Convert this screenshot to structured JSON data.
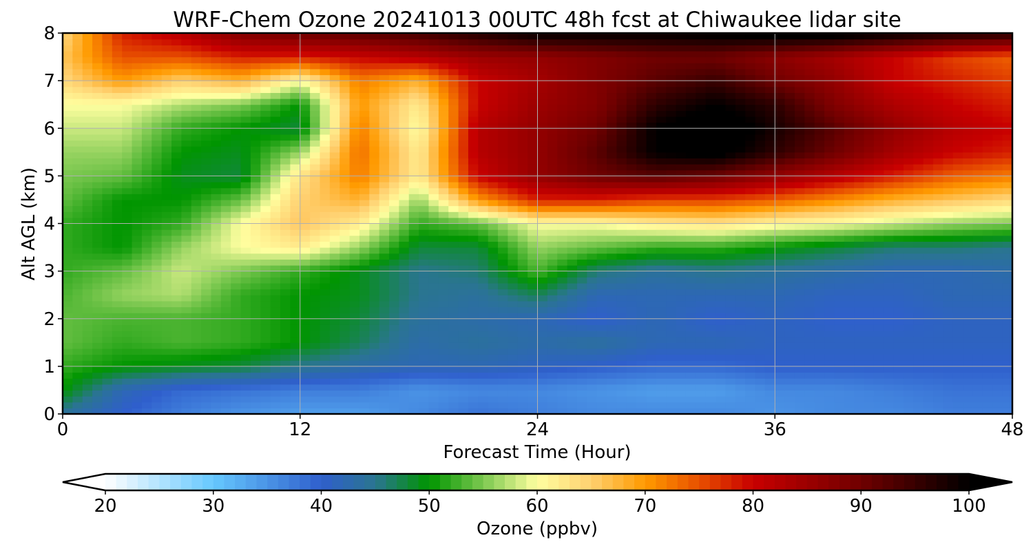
{
  "chart_data": {
    "type": "heatmap",
    "title": "WRF-Chem Ozone  20241013 00UTC 48h fcst at Chiwaukee lidar site",
    "xlabel": "Forecast Time (Hour)",
    "ylabel": "Alt AGL (km)",
    "xlim": [
      0,
      48
    ],
    "ylim": [
      0,
      8
    ],
    "xticks": [
      0,
      12,
      24,
      36,
      48
    ],
    "yticks": [
      0,
      1,
      2,
      3,
      4,
      5,
      6,
      7,
      8
    ],
    "grid": true,
    "colorbar": {
      "label": "Ozone  (ppbv)",
      "range": [
        20,
        100
      ],
      "ticks": [
        20,
        30,
        40,
        50,
        60,
        70,
        80,
        90,
        100
      ],
      "extend": "both",
      "orientation": "horizontal",
      "stops": [
        {
          "value": 20,
          "color": "#ffffff"
        },
        {
          "value": 30,
          "color": "#66c8ff"
        },
        {
          "value": 40,
          "color": "#2f5fcc"
        },
        {
          "value": 45,
          "color": "#2a7590"
        },
        {
          "value": 50,
          "color": "#009500"
        },
        {
          "value": 55,
          "color": "#7cc850"
        },
        {
          "value": 60,
          "color": "#ffffa0"
        },
        {
          "value": 65,
          "color": "#ffd070"
        },
        {
          "value": 70,
          "color": "#ff9a00"
        },
        {
          "value": 75,
          "color": "#e85000"
        },
        {
          "value": 80,
          "color": "#c80000"
        },
        {
          "value": 90,
          "color": "#700000"
        },
        {
          "value": 100,
          "color": "#000000"
        }
      ]
    },
    "altitude_km": [
      0,
      0.5,
      1,
      1.5,
      2,
      2.5,
      3,
      3.5,
      4,
      4.5,
      5,
      5.5,
      6,
      6.5,
      7,
      7.5,
      8
    ],
    "hours": [
      0,
      3,
      6,
      9,
      12,
      15,
      18,
      21,
      24,
      27,
      30,
      33,
      36,
      39,
      42,
      45,
      48
    ],
    "ozone_ppbv": [
      [
        44,
        50,
        52,
        54,
        54,
        53,
        52,
        52,
        52,
        54,
        55,
        56,
        58,
        60,
        64,
        66,
        64
      ],
      [
        40,
        42,
        50,
        52,
        53,
        56,
        54,
        50,
        50,
        50,
        54,
        56,
        58,
        60,
        70,
        75,
        78
      ],
      [
        37,
        39,
        49,
        53,
        53,
        57,
        58,
        56,
        52,
        50,
        49,
        50,
        52,
        57,
        65,
        75,
        82
      ],
      [
        35,
        38,
        48,
        52,
        52,
        52,
        55,
        60,
        60,
        54,
        48,
        49,
        50,
        55,
        68,
        78,
        88
      ],
      [
        34,
        37,
        45,
        50,
        50,
        50,
        52,
        62,
        66,
        65,
        63,
        56,
        48,
        50,
        60,
        78,
        90
      ],
      [
        34,
        37,
        43,
        47,
        48,
        49,
        49,
        56,
        62,
        68,
        72,
        73,
        72,
        70,
        72,
        80,
        92
      ],
      [
        36,
        35,
        42,
        43,
        44,
        45,
        45,
        48,
        52,
        56,
        62,
        62,
        60,
        62,
        68,
        82,
        94
      ],
      [
        38,
        36,
        42,
        44,
        43,
        44,
        46,
        48,
        54,
        70,
        80,
        82,
        82,
        80,
        80,
        85,
        97
      ],
      [
        37,
        36,
        41,
        43,
        42,
        47,
        53,
        56,
        60,
        78,
        86,
        86,
        86,
        85,
        84,
        86,
        100
      ],
      [
        36,
        35,
        40,
        44,
        40,
        42,
        46,
        54,
        60,
        78,
        90,
        92,
        90,
        88,
        88,
        88,
        100
      ],
      [
        36,
        34,
        39,
        42,
        42,
        42,
        44,
        52,
        62,
        76,
        92,
        100,
        100,
        96,
        92,
        90,
        100
      ],
      [
        36,
        34,
        39,
        42,
        40,
        42,
        45,
        52,
        63,
        76,
        90,
        102,
        104,
        100,
        95,
        90,
        101
      ],
      [
        35,
        36,
        40,
        41,
        41,
        42,
        44,
        50,
        61,
        74,
        86,
        96,
        98,
        96,
        90,
        87,
        102
      ],
      [
        36,
        36,
        40,
        41,
        40,
        41,
        43,
        48,
        60,
        71,
        82,
        90,
        92,
        88,
        86,
        84,
        102
      ],
      [
        36,
        37,
        40,
        41,
        40,
        41,
        42,
        46,
        58,
        68,
        78,
        84,
        86,
        83,
        80,
        80,
        100
      ],
      [
        37,
        38,
        40,
        41,
        41,
        42,
        42,
        46,
        56,
        66,
        74,
        80,
        82,
        80,
        78,
        76,
        98
      ],
      [
        37,
        38,
        40,
        41,
        41,
        42,
        43,
        45,
        55,
        64,
        72,
        78,
        80,
        78,
        76,
        74,
        97
      ]
    ]
  }
}
